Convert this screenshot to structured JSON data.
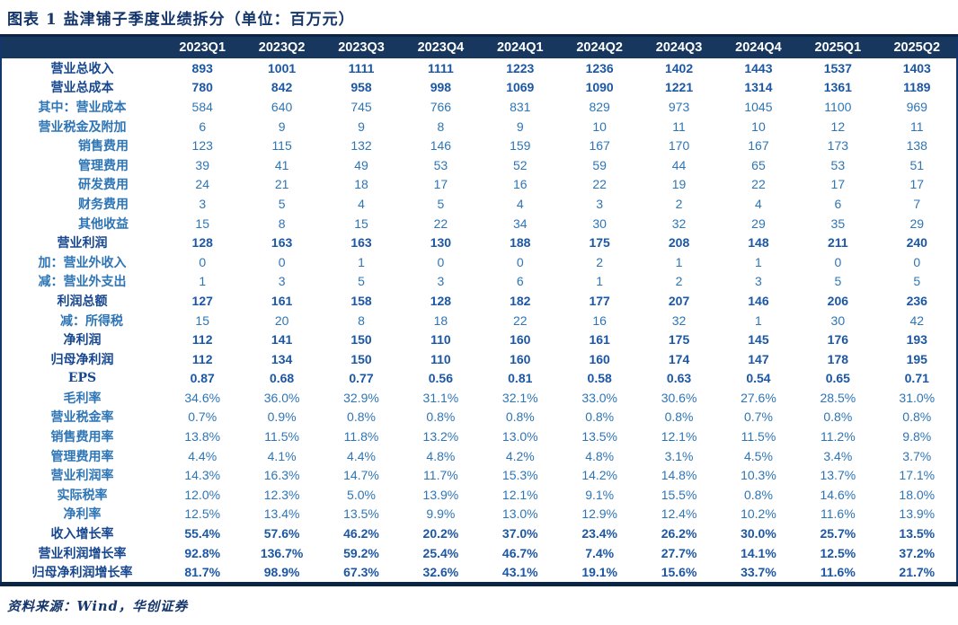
{
  "title": "图表 1  盐津铺子季度业绩拆分（单位：百万元）",
  "footer": "资料来源：Wind，华创证券",
  "colors": {
    "header_bg": "#17375E",
    "border_dark": "#0B2545",
    "value_regular": "#2E75B6",
    "value_bold": "#1C57A5",
    "title_text": "#14366B"
  },
  "table": {
    "columns": [
      "2023Q1",
      "2023Q2",
      "2023Q3",
      "2023Q4",
      "2024Q1",
      "2024Q2",
      "2024Q3",
      "2024Q4",
      "2025Q1",
      "2025Q2"
    ],
    "rows": [
      {
        "label": "营业总收入",
        "bold": true,
        "align": "center",
        "values": [
          "893",
          "1001",
          "1111",
          "1111",
          "1223",
          "1236",
          "1402",
          "1443",
          "1537",
          "1403"
        ]
      },
      {
        "label": "营业总成本",
        "bold": true,
        "align": "center",
        "values": [
          "780",
          "842",
          "958",
          "998",
          "1069",
          "1090",
          "1221",
          "1314",
          "1361",
          "1189"
        ]
      },
      {
        "label": "其中：营业成本",
        "bold": false,
        "align": "center",
        "values": [
          "584",
          "640",
          "745",
          "766",
          "831",
          "829",
          "973",
          "1045",
          "1100",
          "969"
        ]
      },
      {
        "label": "营业税金及附加",
        "bold": false,
        "align": "center",
        "values": [
          "6",
          "9",
          "9",
          "8",
          "9",
          "10",
          "11",
          "10",
          "12",
          "11"
        ]
      },
      {
        "label": "销售费用",
        "bold": false,
        "align": "right",
        "values": [
          "123",
          "115",
          "132",
          "146",
          "159",
          "167",
          "170",
          "167",
          "173",
          "138"
        ]
      },
      {
        "label": "管理费用",
        "bold": false,
        "align": "right",
        "values": [
          "39",
          "41",
          "49",
          "53",
          "52",
          "59",
          "44",
          "65",
          "53",
          "51"
        ]
      },
      {
        "label": "研发费用",
        "bold": false,
        "align": "right",
        "values": [
          "24",
          "21",
          "18",
          "17",
          "16",
          "22",
          "19",
          "22",
          "17",
          "17"
        ]
      },
      {
        "label": "财务费用",
        "bold": false,
        "align": "right",
        "values": [
          "3",
          "5",
          "4",
          "5",
          "4",
          "3",
          "2",
          "4",
          "6",
          "7"
        ]
      },
      {
        "label": "其他收益",
        "bold": false,
        "align": "right",
        "values": [
          "15",
          "8",
          "15",
          "22",
          "34",
          "30",
          "32",
          "29",
          "35",
          "29"
        ]
      },
      {
        "label": "营业利润",
        "bold": true,
        "align": "center",
        "values": [
          "128",
          "163",
          "163",
          "130",
          "188",
          "175",
          "208",
          "148",
          "211",
          "240"
        ]
      },
      {
        "label": "加：营业外收入",
        "bold": false,
        "align": "center",
        "values": [
          "0",
          "0",
          "1",
          "0",
          "0",
          "2",
          "1",
          "1",
          "0",
          "0"
        ]
      },
      {
        "label": "减：营业外支出",
        "bold": false,
        "align": "center",
        "values": [
          "1",
          "3",
          "5",
          "3",
          "6",
          "1",
          "2",
          "3",
          "5",
          "5"
        ]
      },
      {
        "label": "利润总额",
        "bold": true,
        "align": "center",
        "values": [
          "127",
          "161",
          "158",
          "128",
          "182",
          "177",
          "207",
          "146",
          "206",
          "236"
        ]
      },
      {
        "label": "减：所得税",
        "bold": false,
        "align": "right-tax",
        "values": [
          "15",
          "20",
          "8",
          "18",
          "22",
          "16",
          "32",
          "1",
          "30",
          "42"
        ]
      },
      {
        "label": "净利润",
        "bold": true,
        "align": "center",
        "values": [
          "112",
          "141",
          "150",
          "110",
          "160",
          "161",
          "175",
          "145",
          "176",
          "193"
        ]
      },
      {
        "label": "归母净利润",
        "bold": true,
        "align": "center",
        "values": [
          "112",
          "134",
          "150",
          "110",
          "160",
          "160",
          "174",
          "147",
          "178",
          "195"
        ]
      },
      {
        "label": "EPS",
        "bold": true,
        "align": "center",
        "values": [
          "0.87",
          "0.68",
          "0.77",
          "0.56",
          "0.81",
          "0.58",
          "0.63",
          "0.54",
          "0.65",
          "0.71"
        ]
      },
      {
        "label": "毛利率",
        "bold": false,
        "align": "center",
        "values": [
          "34.6%",
          "36.0%",
          "32.9%",
          "31.1%",
          "32.1%",
          "33.0%",
          "30.6%",
          "27.6%",
          "28.5%",
          "31.0%"
        ]
      },
      {
        "label": "营业税金率",
        "bold": false,
        "align": "center",
        "values": [
          "0.7%",
          "0.9%",
          "0.8%",
          "0.8%",
          "0.8%",
          "0.8%",
          "0.8%",
          "0.7%",
          "0.8%",
          "0.8%"
        ]
      },
      {
        "label": "销售费用率",
        "bold": false,
        "align": "center",
        "values": [
          "13.8%",
          "11.5%",
          "11.8%",
          "13.2%",
          "13.0%",
          "13.5%",
          "12.1%",
          "11.5%",
          "11.2%",
          "9.8%"
        ]
      },
      {
        "label": "管理费用率",
        "bold": false,
        "align": "center",
        "values": [
          "4.4%",
          "4.1%",
          "4.4%",
          "4.8%",
          "4.2%",
          "4.8%",
          "3.1%",
          "4.5%",
          "3.4%",
          "3.7%"
        ]
      },
      {
        "label": "营业利润率",
        "bold": false,
        "align": "center",
        "values": [
          "14.3%",
          "16.3%",
          "14.7%",
          "11.7%",
          "15.3%",
          "14.2%",
          "14.8%",
          "10.3%",
          "13.7%",
          "17.1%"
        ]
      },
      {
        "label": "实际税率",
        "bold": false,
        "align": "center",
        "values": [
          "12.0%",
          "12.3%",
          "5.0%",
          "13.9%",
          "12.1%",
          "9.1%",
          "15.5%",
          "0.8%",
          "14.6%",
          "18.0%"
        ]
      },
      {
        "label": "净利率",
        "bold": false,
        "align": "center",
        "values": [
          "12.5%",
          "13.4%",
          "13.5%",
          "9.9%",
          "13.0%",
          "12.9%",
          "12.4%",
          "10.2%",
          "11.6%",
          "13.9%"
        ]
      },
      {
        "label": "收入增长率",
        "bold": true,
        "align": "center",
        "values": [
          "55.4%",
          "57.6%",
          "46.2%",
          "20.2%",
          "37.0%",
          "23.4%",
          "26.2%",
          "30.0%",
          "25.7%",
          "13.5%"
        ]
      },
      {
        "label": "营业利润增长率",
        "bold": true,
        "align": "center",
        "values": [
          "92.8%",
          "136.7%",
          "59.2%",
          "25.4%",
          "46.7%",
          "7.4%",
          "27.7%",
          "14.1%",
          "12.5%",
          "37.2%"
        ]
      },
      {
        "label": "归母净利润增长率",
        "bold": true,
        "align": "center",
        "values": [
          "81.7%",
          "98.9%",
          "67.3%",
          "32.6%",
          "43.1%",
          "19.1%",
          "15.6%",
          "33.7%",
          "11.6%",
          "21.7%"
        ]
      }
    ]
  }
}
